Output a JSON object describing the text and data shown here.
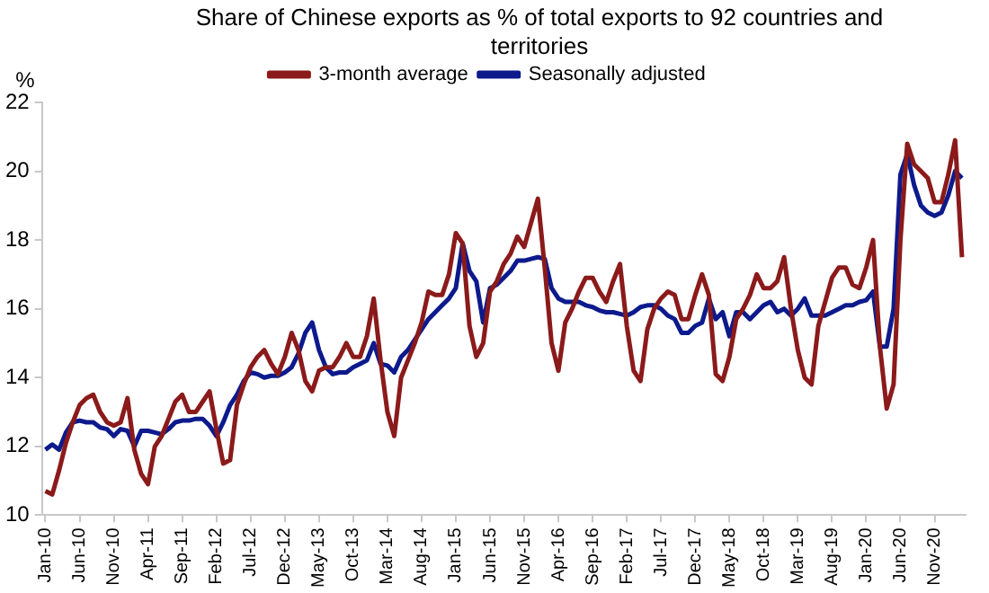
{
  "chart_data": {
    "type": "line",
    "title": "Share of Chinese exports as % of total exports to 92 countries and territories",
    "ylabel": "%",
    "categories": [
      "Jan-10",
      null,
      null,
      null,
      null,
      "Jun-10",
      null,
      null,
      null,
      null,
      "Nov-10",
      null,
      null,
      null,
      null,
      "Apr-11",
      null,
      null,
      null,
      null,
      "Sep-11",
      null,
      null,
      null,
      null,
      "Feb-12",
      null,
      null,
      null,
      null,
      "Jul-12",
      null,
      null,
      null,
      null,
      "Dec-12",
      null,
      null,
      null,
      null,
      "May-13",
      null,
      null,
      null,
      null,
      "Oct-13",
      null,
      null,
      null,
      null,
      "Mar-14",
      null,
      null,
      null,
      null,
      "Aug-14",
      null,
      null,
      null,
      null,
      "Jan-15",
      null,
      null,
      null,
      null,
      "Jun-15",
      null,
      null,
      null,
      null,
      "Nov-15",
      null,
      null,
      null,
      null,
      "Apr-16",
      null,
      null,
      null,
      null,
      "Sep-16",
      null,
      null,
      null,
      null,
      "Feb-17",
      null,
      null,
      null,
      null,
      "Jul-17",
      null,
      null,
      null,
      null,
      "Dec-17",
      null,
      null,
      null,
      null,
      "May-18",
      null,
      null,
      null,
      null,
      "Oct-18",
      null,
      null,
      null,
      null,
      "Mar-19",
      null,
      null,
      null,
      null,
      "Aug-19",
      null,
      null,
      null,
      null,
      "Jan-20",
      null,
      null,
      null,
      null,
      "Jun-20",
      null,
      null,
      null,
      null,
      "Nov-20",
      null,
      null,
      null,
      null
    ],
    "series": [
      {
        "name": "3-month average",
        "color": "#8b1a1a",
        "values": [
          10.7,
          10.6,
          11.3,
          12.1,
          12.7,
          13.2,
          13.4,
          13.5,
          13.0,
          12.7,
          12.6,
          12.7,
          13.4,
          11.9,
          11.2,
          10.9,
          12.0,
          12.3,
          12.8,
          13.3,
          13.5,
          13.0,
          13.0,
          13.3,
          13.6,
          12.5,
          11.5,
          11.6,
          13.2,
          13.8,
          14.3,
          14.6,
          14.8,
          14.4,
          14.1,
          14.6,
          15.3,
          14.8,
          13.9,
          13.6,
          14.2,
          14.3,
          14.3,
          14.6,
          15.0,
          14.6,
          14.6,
          15.2,
          16.3,
          14.5,
          13.0,
          12.3,
          14.0,
          14.5,
          15.0,
          15.6,
          16.5,
          16.4,
          16.4,
          17.0,
          18.2,
          17.9,
          15.5,
          14.6,
          15.0,
          16.5,
          16.8,
          17.3,
          17.6,
          18.1,
          17.8,
          18.5,
          19.2,
          17.2,
          15.0,
          14.2,
          15.6,
          16.0,
          16.5,
          16.9,
          16.9,
          16.5,
          16.2,
          16.8,
          17.3,
          15.5,
          14.2,
          13.9,
          15.4,
          16.0,
          16.3,
          16.5,
          16.4,
          15.7,
          15.7,
          16.4,
          17.0,
          16.4,
          14.1,
          13.9,
          14.6,
          15.7,
          16.0,
          16.4,
          17.0,
          16.6,
          16.6,
          16.8,
          17.5,
          16.0,
          14.8,
          14.0,
          13.8,
          15.5,
          16.2,
          16.9,
          17.2,
          17.2,
          16.7,
          16.6,
          17.2,
          18.0,
          14.9,
          13.1,
          13.8,
          18.0,
          20.8,
          20.2,
          20.0,
          19.8,
          19.1,
          19.1,
          19.9,
          20.9,
          17.5
        ]
      },
      {
        "name": "Seasonally adjusted",
        "color": "#0d1a8c",
        "values": [
          11.9,
          12.05,
          11.9,
          12.4,
          12.7,
          12.75,
          12.7,
          12.7,
          12.55,
          12.5,
          12.3,
          12.5,
          12.45,
          12.0,
          12.45,
          12.45,
          12.4,
          12.35,
          12.5,
          12.7,
          12.75,
          12.75,
          12.8,
          12.8,
          12.6,
          12.3,
          12.7,
          13.2,
          13.5,
          13.9,
          14.15,
          14.1,
          14.0,
          14.05,
          14.05,
          14.15,
          14.3,
          14.7,
          15.3,
          15.6,
          14.8,
          14.3,
          14.1,
          14.15,
          14.15,
          14.3,
          14.4,
          14.5,
          15.0,
          14.4,
          14.35,
          14.15,
          14.6,
          14.8,
          15.1,
          15.4,
          15.7,
          15.9,
          16.1,
          16.3,
          16.6,
          17.9,
          17.1,
          16.8,
          15.6,
          16.6,
          16.7,
          16.9,
          17.1,
          17.4,
          17.4,
          17.45,
          17.5,
          17.45,
          16.6,
          16.3,
          16.2,
          16.2,
          16.2,
          16.1,
          16.05,
          15.95,
          15.9,
          15.9,
          15.85,
          15.8,
          15.9,
          16.05,
          16.1,
          16.1,
          16.0,
          15.8,
          15.7,
          15.3,
          15.3,
          15.5,
          15.6,
          16.3,
          15.7,
          15.9,
          15.2,
          15.9,
          15.9,
          15.7,
          15.9,
          16.1,
          16.2,
          15.9,
          16.0,
          15.8,
          16.0,
          16.3,
          15.8,
          15.8,
          15.8,
          15.9,
          16.0,
          16.1,
          16.1,
          16.2,
          16.25,
          16.5,
          14.9,
          14.9,
          16.0,
          19.9,
          20.5,
          19.6,
          19.0,
          18.8,
          18.7,
          18.8,
          19.3,
          20.0,
          19.8
        ]
      }
    ],
    "ylim": [
      10,
      22
    ],
    "yticks": [
      10,
      12,
      14,
      16,
      18,
      20,
      22
    ],
    "grid": false,
    "legend": "top",
    "marker": "none",
    "line_style": "solid"
  }
}
